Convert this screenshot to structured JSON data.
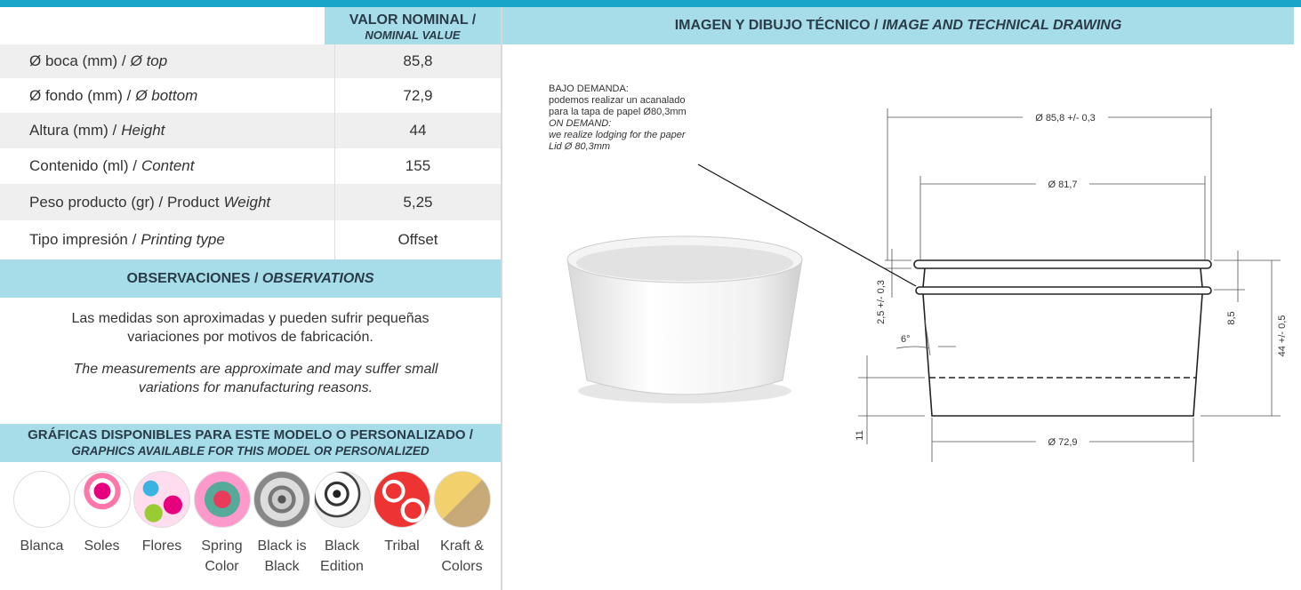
{
  "table": {
    "header": {
      "es": "VALOR NOMINAL /",
      "en": "NOMINAL VALUE"
    },
    "rows": [
      {
        "label": "Ø boca (mm) /",
        "label_italic": "Ø top",
        "value": "85,8"
      },
      {
        "label": "Ø fondo (mm) /",
        "label_italic": "Ø bottom",
        "value": "72,9"
      },
      {
        "label": "Altura (mm) /",
        "label_italic": "Height",
        "value": "44"
      },
      {
        "label": "Contenido (ml) /",
        "label_italic": "Content",
        "value": "155"
      },
      {
        "label": "Peso producto (gr) / Product",
        "label_italic": "Weight",
        "value": "5,25"
      },
      {
        "label": "Tipo impresión /",
        "label_italic": "Printing type",
        "value": "Offset"
      }
    ]
  },
  "observations": {
    "title": "OBSERVACIONES /",
    "title_italic": "OBSERVATIONS",
    "text_es": "Las medidas son aproximadas y pueden sufrir pequeñas variaciones por motivos de fabricación.",
    "text_en": "The measurements are approximate and may suffer small variations for manufacturing reasons."
  },
  "graphics": {
    "title": "GRÁFICAS DISPONIBLES PARA ESTE MODELO O PERSONALIZADO /",
    "title_italic": "GRAPHICS AVAILABLE FOR THIS MODEL OR PERSONALIZED",
    "items": [
      "Blanca",
      "Soles",
      "Flores",
      "Spring Color",
      "Black is Black",
      "Black Edition",
      "Tribal",
      "Kraft & Colors"
    ]
  },
  "drawing": {
    "title": "IMAGEN Y DIBUJO TÉCNICO  /",
    "title_italic": "IMAGE AND TECHNICAL DRAWING",
    "note": [
      "BAJO DEMANDA:",
      "podemos realizar un acanalado",
      "para la tapa de papel Ø80,3mm"
    ],
    "note_italic": [
      "ON DEMAND:",
      "we realize lodging for the paper",
      "Lid Ø 80,3mm"
    ],
    "dimensions": {
      "top_diameter": "Ø 85,8 +/- 0,3",
      "inner_diameter": "Ø 81,7",
      "bottom_diameter": "Ø 72,9",
      "rim": "2,5 +/- 0,3",
      "angle": "6°",
      "rim_depth": "8,5",
      "height": "44 +/- 0,5",
      "base": "11"
    }
  }
}
